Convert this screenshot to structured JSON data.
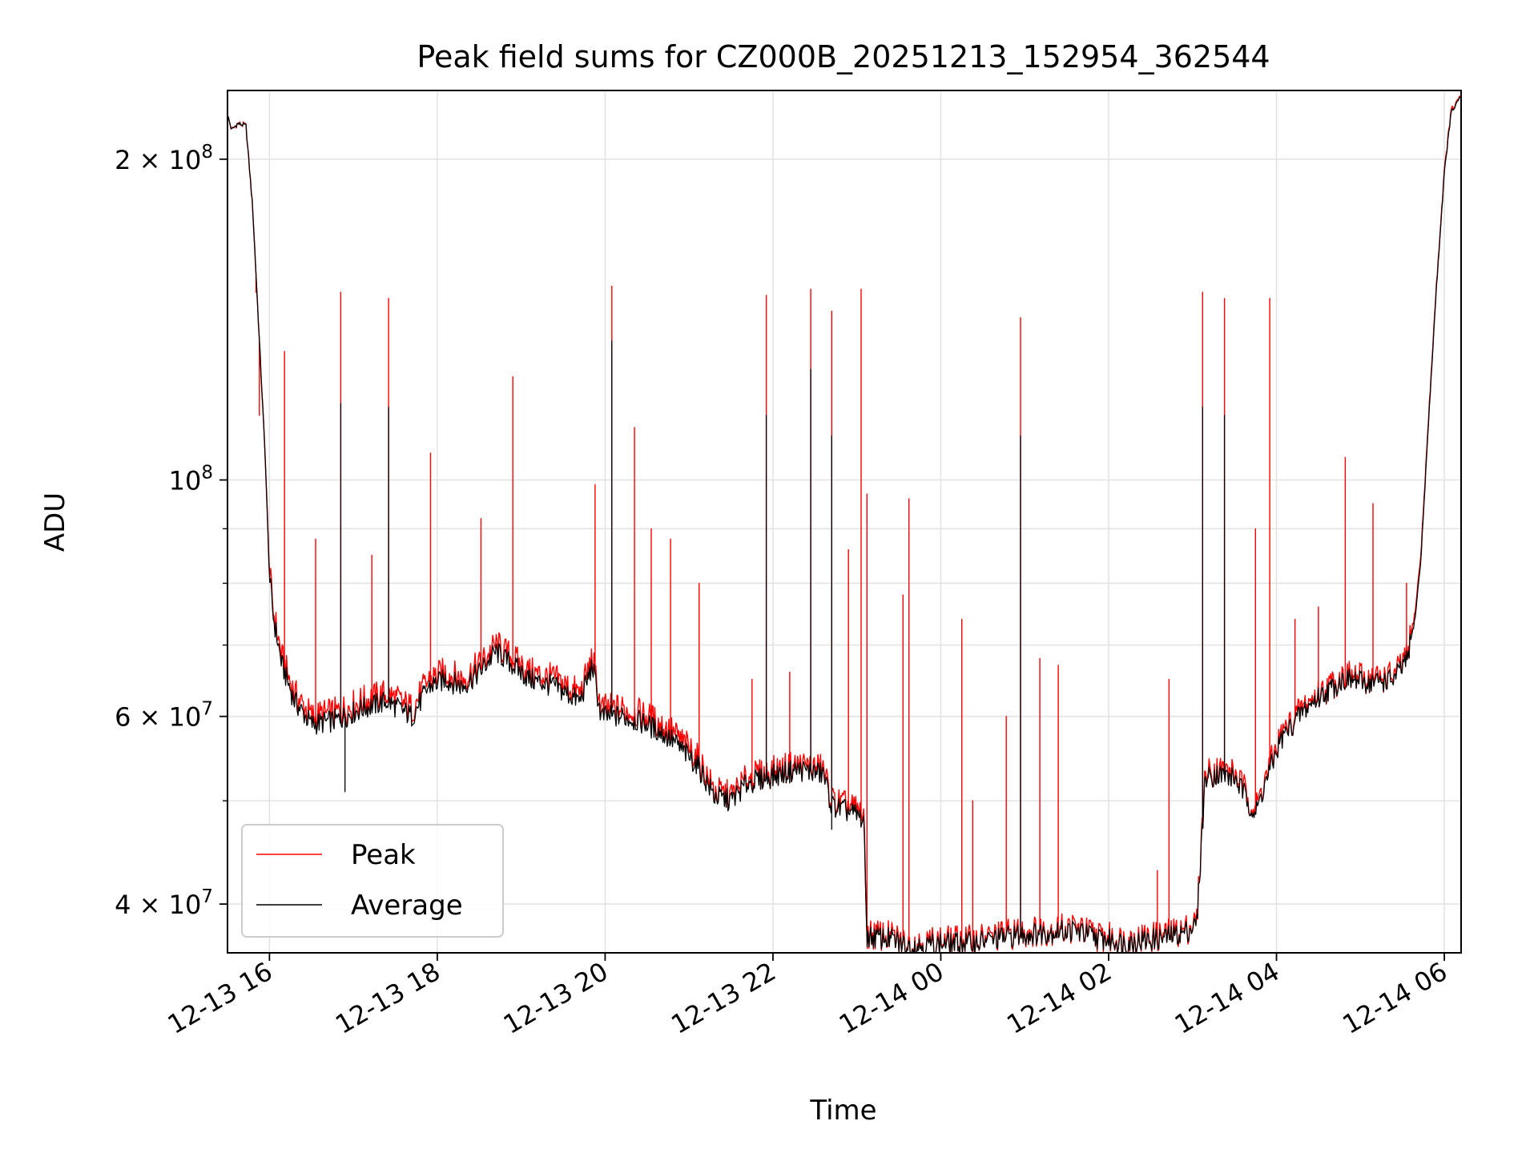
{
  "chart_data": {
    "type": "line",
    "title": "Peak field sums for CZ000B_20251213_152954_362544",
    "xlabel": "Time",
    "ylabel": "ADU",
    "yscale": "log",
    "xlim": [
      15.5,
      30.2
    ],
    "ylim": [
      36000000,
      232000000
    ],
    "grid": true,
    "legend_position": "lower-left",
    "x_ticks": [
      {
        "value": 16,
        "label": "12-13 16"
      },
      {
        "value": 18,
        "label": "12-13 18"
      },
      {
        "value": 20,
        "label": "12-13 20"
      },
      {
        "value": 22,
        "label": "12-13 22"
      },
      {
        "value": 24,
        "label": "12-14 00"
      },
      {
        "value": 26,
        "label": "12-14 02"
      },
      {
        "value": 28,
        "label": "12-14 04"
      },
      {
        "value": 30,
        "label": "12-14 06"
      }
    ],
    "y_ticks_major": [
      {
        "value": 40000000,
        "mantissa": "4",
        "exponent": "7"
      },
      {
        "value": 60000000,
        "mantissa": "6",
        "exponent": "7"
      },
      {
        "value": 100000000,
        "mantissa": "",
        "exponent": "8"
      },
      {
        "value": 200000000,
        "mantissa": "2",
        "exponent": "8"
      }
    ],
    "y_ticks_minor": [
      50000000,
      70000000,
      80000000,
      90000000
    ],
    "series": [
      {
        "name": "Peak",
        "color": "#ff0000",
        "baseline": [
          [
            15.5,
            220000000
          ],
          [
            15.55,
            213000000
          ],
          [
            15.62,
            216000000
          ],
          [
            15.72,
            215000000
          ],
          [
            15.8,
            180000000
          ],
          [
            15.87,
            140000000
          ],
          [
            15.95,
            105000000
          ],
          [
            16.0,
            82000000
          ],
          [
            16.05,
            75000000
          ],
          [
            16.15,
            68000000
          ],
          [
            16.3,
            63000000
          ],
          [
            16.5,
            60000000
          ],
          [
            16.8,
            60500000
          ],
          [
            17.1,
            62000000
          ],
          [
            17.4,
            63000000
          ],
          [
            17.7,
            61000000
          ],
          [
            17.9,
            65000000
          ],
          [
            18.1,
            66000000
          ],
          [
            18.3,
            65000000
          ],
          [
            18.5,
            67000000
          ],
          [
            18.7,
            70000000
          ],
          [
            18.9,
            68000000
          ],
          [
            19.1,
            66000000
          ],
          [
            19.4,
            65000000
          ],
          [
            19.7,
            63000000
          ],
          [
            19.85,
            68000000
          ],
          [
            19.95,
            61000000
          ],
          [
            20.2,
            61000000
          ],
          [
            20.5,
            60000000
          ],
          [
            20.8,
            58000000
          ],
          [
            21.1,
            55000000
          ],
          [
            21.3,
            51000000
          ],
          [
            21.5,
            50500000
          ],
          [
            21.7,
            52500000
          ],
          [
            21.9,
            53000000
          ],
          [
            22.3,
            54000000
          ],
          [
            22.6,
            53500000
          ],
          [
            22.7,
            50000000
          ],
          [
            23.0,
            49000000
          ],
          [
            23.08,
            48500000
          ],
          [
            23.12,
            37500000
          ],
          [
            23.4,
            37300000
          ],
          [
            23.6,
            36700000
          ],
          [
            24.0,
            36900000
          ],
          [
            24.4,
            37000000
          ],
          [
            24.8,
            37500000
          ],
          [
            25.2,
            37800000
          ],
          [
            25.6,
            38000000
          ],
          [
            25.9,
            37300000
          ],
          [
            26.2,
            37000000
          ],
          [
            26.6,
            37300000
          ],
          [
            26.9,
            37800000
          ],
          [
            27.05,
            38500000
          ],
          [
            27.15,
            53000000
          ],
          [
            27.3,
            53500000
          ],
          [
            27.5,
            53000000
          ],
          [
            27.6,
            51500000
          ],
          [
            27.75,
            49000000
          ],
          [
            27.85,
            52000000
          ],
          [
            28.05,
            57500000
          ],
          [
            28.3,
            61000000
          ],
          [
            28.5,
            63000000
          ],
          [
            28.8,
            65500000
          ],
          [
            29.1,
            65000000
          ],
          [
            29.4,
            65500000
          ],
          [
            29.55,
            68000000
          ],
          [
            29.65,
            75000000
          ],
          [
            29.72,
            85000000
          ],
          [
            29.8,
            110000000
          ],
          [
            29.9,
            150000000
          ],
          [
            30.0,
            195000000
          ],
          [
            30.08,
            222000000
          ],
          [
            30.2,
            229000000
          ]
        ],
        "spikes": [
          [
            15.84,
            150000000
          ],
          [
            15.88,
            115000000
          ],
          [
            16.18,
            132000000
          ],
          [
            16.55,
            88000000
          ],
          [
            16.85,
            150000000
          ],
          [
            17.22,
            85000000
          ],
          [
            17.42,
            148000000
          ],
          [
            17.92,
            106000000
          ],
          [
            18.52,
            92000000
          ],
          [
            18.9,
            125000000
          ],
          [
            19.88,
            99000000
          ],
          [
            20.08,
            152000000
          ],
          [
            20.35,
            112000000
          ],
          [
            20.55,
            90000000
          ],
          [
            20.78,
            88000000
          ],
          [
            21.12,
            80000000
          ],
          [
            21.75,
            65000000
          ],
          [
            21.92,
            149000000
          ],
          [
            22.2,
            66000000
          ],
          [
            22.45,
            151000000
          ],
          [
            22.7,
            144000000
          ],
          [
            22.9,
            86000000
          ],
          [
            23.05,
            151000000
          ],
          [
            23.12,
            97000000
          ],
          [
            23.55,
            78000000
          ],
          [
            23.62,
            96000000
          ],
          [
            24.25,
            74000000
          ],
          [
            24.38,
            50000000
          ],
          [
            24.78,
            60000000
          ],
          [
            24.95,
            142000000
          ],
          [
            25.18,
            68000000
          ],
          [
            25.4,
            67000000
          ],
          [
            26.58,
            43000000
          ],
          [
            26.72,
            65000000
          ],
          [
            27.12,
            150000000
          ],
          [
            27.38,
            148000000
          ],
          [
            27.75,
            90000000
          ],
          [
            27.92,
            148000000
          ],
          [
            28.22,
            74000000
          ],
          [
            28.5,
            76000000
          ],
          [
            28.82,
            105000000
          ],
          [
            29.15,
            95000000
          ],
          [
            29.55,
            80000000
          ]
        ]
      },
      {
        "name": "Average",
        "color": "#000000",
        "baseline": [
          [
            15.5,
            220000000
          ],
          [
            15.55,
            213000000
          ],
          [
            15.62,
            216000000
          ],
          [
            15.72,
            215000000
          ],
          [
            15.8,
            180000000
          ],
          [
            15.87,
            140000000
          ],
          [
            15.95,
            105000000
          ],
          [
            16.0,
            81000000
          ],
          [
            16.05,
            74000000
          ],
          [
            16.15,
            67000000
          ],
          [
            16.3,
            62000000
          ],
          [
            16.5,
            59000000
          ],
          [
            16.8,
            59500000
          ],
          [
            17.1,
            61000000
          ],
          [
            17.4,
            62000000
          ],
          [
            17.7,
            60000000
          ],
          [
            17.9,
            64000000
          ],
          [
            18.1,
            65000000
          ],
          [
            18.3,
            64000000
          ],
          [
            18.5,
            66000000
          ],
          [
            18.7,
            69000000
          ],
          [
            18.9,
            67000000
          ],
          [
            19.1,
            65000000
          ],
          [
            19.4,
            64000000
          ],
          [
            19.7,
            62000000
          ],
          [
            19.85,
            67000000
          ],
          [
            19.95,
            60000000
          ],
          [
            20.2,
            60000000
          ],
          [
            20.5,
            59000000
          ],
          [
            20.8,
            57000000
          ],
          [
            21.1,
            54000000
          ],
          [
            21.3,
            50500000
          ],
          [
            21.5,
            50000000
          ],
          [
            21.7,
            52000000
          ],
          [
            21.9,
            52500000
          ],
          [
            22.3,
            53500000
          ],
          [
            22.6,
            53000000
          ],
          [
            22.7,
            49500000
          ],
          [
            23.0,
            48500000
          ],
          [
            23.08,
            48000000
          ],
          [
            23.12,
            37300000
          ],
          [
            23.4,
            37100000
          ],
          [
            23.6,
            36500000
          ],
          [
            24.0,
            36700000
          ],
          [
            24.4,
            36800000
          ],
          [
            24.8,
            37300000
          ],
          [
            25.2,
            37600000
          ],
          [
            25.6,
            37800000
          ],
          [
            25.9,
            37100000
          ],
          [
            26.2,
            36800000
          ],
          [
            26.6,
            37100000
          ],
          [
            26.9,
            37600000
          ],
          [
            27.05,
            38300000
          ],
          [
            27.15,
            52500000
          ],
          [
            27.3,
            53000000
          ],
          [
            27.5,
            52500000
          ],
          [
            27.6,
            51000000
          ],
          [
            27.75,
            48500000
          ],
          [
            27.85,
            51500000
          ],
          [
            28.05,
            57000000
          ],
          [
            28.3,
            60500000
          ],
          [
            28.5,
            62500000
          ],
          [
            28.8,
            65000000
          ],
          [
            29.1,
            64500000
          ],
          [
            29.4,
            65000000
          ],
          [
            29.55,
            67500000
          ],
          [
            29.65,
            74000000
          ],
          [
            29.72,
            84000000
          ],
          [
            29.8,
            109000000
          ],
          [
            29.9,
            149000000
          ],
          [
            30.0,
            194000000
          ],
          [
            30.08,
            221000000
          ],
          [
            30.2,
            229000000
          ]
        ],
        "spikes": [
          [
            16.85,
            118000000
          ],
          [
            17.42,
            117000000
          ],
          [
            20.08,
            135000000
          ],
          [
            21.92,
            115000000
          ],
          [
            22.45,
            127000000
          ],
          [
            22.7,
            110000000
          ],
          [
            24.95,
            110000000
          ],
          [
            27.12,
            117000000
          ],
          [
            27.38,
            115000000
          ],
          [
            16.9,
            51000000
          ],
          [
            22.7,
            47000000
          ]
        ]
      }
    ]
  }
}
